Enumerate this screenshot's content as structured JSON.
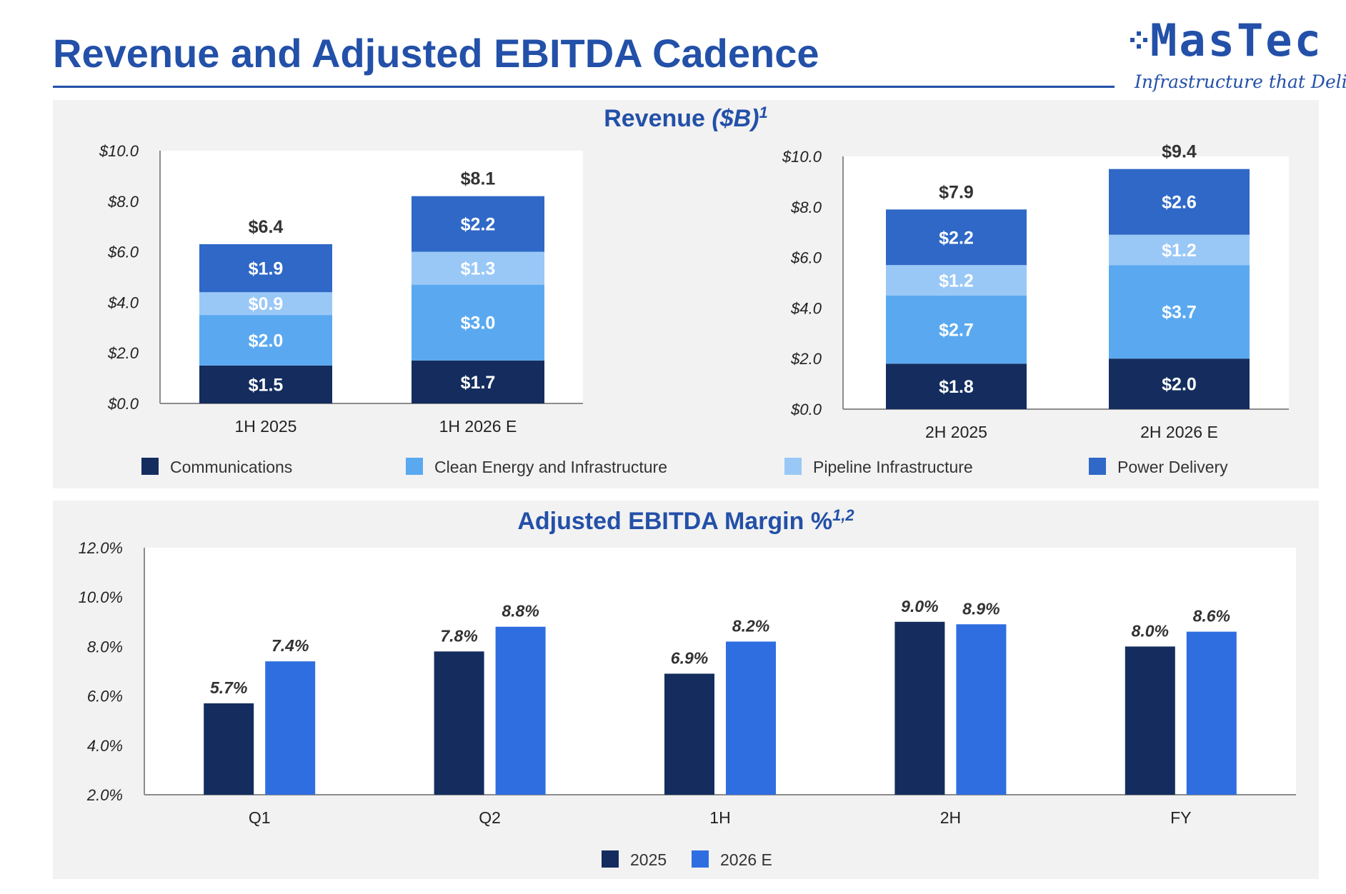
{
  "page": {
    "title": "Revenue and Adjusted EBITDA Cadence"
  },
  "logo": {
    "name": "MasTec",
    "tagline": "Infrastructure that Delivers",
    "color": "#2350a8"
  },
  "colors": {
    "title_blue": "#2350a8",
    "communications": "#142d5e",
    "clean_energy": "#5aa9f0",
    "pipeline": "#99c8f7",
    "power_delivery": "#2f68c7",
    "series_2025": "#142d5e",
    "series_2026": "#2f6ee0"
  },
  "revenue": {
    "title_main": "Revenue ",
    "title_italic": "($B)",
    "title_sup": "1",
    "legend": [
      "Communications",
      "Clean Energy and Infrastructure",
      "Pipeline Infrastructure",
      "Power Delivery"
    ]
  },
  "ebitda": {
    "title_main": "Adjusted EBITDA Margin %",
    "title_sup": "1,2",
    "legend": [
      "2025",
      "2026 E"
    ]
  },
  "chart_data": [
    {
      "type": "bar",
      "stacked": true,
      "categories": [
        "1H 2025",
        "1H 2026 E"
      ],
      "series": [
        {
          "name": "Communications",
          "values": [
            1.5,
            1.7
          ],
          "labels": [
            "$1.5",
            "$1.7"
          ]
        },
        {
          "name": "Clean Energy and Infrastructure",
          "values": [
            2.0,
            3.0
          ],
          "labels": [
            "$2.0",
            "$3.0"
          ]
        },
        {
          "name": "Pipeline Infrastructure",
          "values": [
            0.9,
            1.3
          ],
          "labels": [
            "$0.9",
            "$1.3"
          ]
        },
        {
          "name": "Power Delivery",
          "values": [
            1.9,
            2.2
          ],
          "labels": [
            "$1.9",
            "$2.2"
          ]
        }
      ],
      "totals": [
        6.4,
        8.1
      ],
      "total_labels": [
        "$6.4",
        "$8.1"
      ],
      "ylim": [
        0,
        10
      ],
      "ytick_labels": [
        "$0.0",
        "$2.0",
        "$4.0",
        "$6.0",
        "$8.0",
        "$10.0"
      ],
      "grid": false
    },
    {
      "type": "bar",
      "stacked": true,
      "categories": [
        "2H 2025",
        "2H 2026 E"
      ],
      "series": [
        {
          "name": "Communications",
          "values": [
            1.8,
            2.0
          ],
          "labels": [
            "$1.8",
            "$2.0"
          ]
        },
        {
          "name": "Clean Energy and Infrastructure",
          "values": [
            2.7,
            3.7
          ],
          "labels": [
            "$2.7",
            "$3.7"
          ]
        },
        {
          "name": "Pipeline Infrastructure",
          "values": [
            1.2,
            1.2
          ],
          "labels": [
            "$1.2",
            "$1.2"
          ]
        },
        {
          "name": "Power Delivery",
          "values": [
            2.2,
            2.6
          ],
          "labels": [
            "$2.2",
            "$2.6"
          ]
        }
      ],
      "totals": [
        7.9,
        9.4
      ],
      "total_labels": [
        "$7.9",
        "$9.4"
      ],
      "ylim": [
        0,
        10
      ],
      "ytick_labels": [
        "$0.0",
        "$2.0",
        "$4.0",
        "$6.0",
        "$8.0",
        "$10.0"
      ],
      "grid": false
    },
    {
      "type": "bar",
      "stacked": false,
      "categories": [
        "Q1",
        "Q2",
        "1H",
        "2H",
        "FY"
      ],
      "series": [
        {
          "name": "2025",
          "values": [
            5.7,
            7.8,
            6.9,
            9.0,
            8.0
          ],
          "labels": [
            "5.7%",
            "7.8%",
            "6.9%",
            "9.0%",
            "8.0%"
          ]
        },
        {
          "name": "2026 E",
          "values": [
            7.4,
            8.8,
            8.2,
            8.9,
            8.6
          ],
          "labels": [
            "7.4%",
            "8.8%",
            "8.2%",
            "8.9%",
            "8.6%"
          ]
        }
      ],
      "ylim": [
        2,
        12
      ],
      "ytick_labels": [
        "2.0%",
        "4.0%",
        "6.0%",
        "8.0%",
        "10.0%",
        "12.0%"
      ],
      "grid": false,
      "legend_position": "bottom"
    }
  ]
}
